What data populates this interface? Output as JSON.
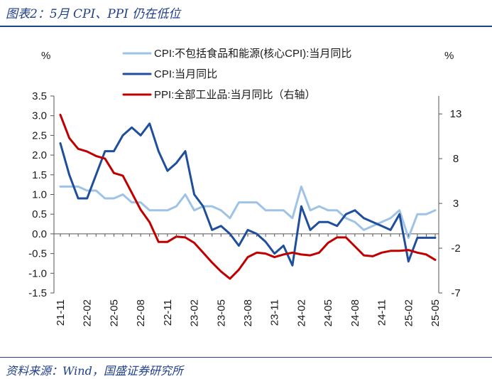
{
  "title": "图表2：5月 CPI、PPI 仍在低位",
  "source": "资料来源：Wind，国盛证券研究所",
  "chart_data": {
    "type": "line",
    "y_left": {
      "unit": "%",
      "ticks": [
        "3.5",
        "3.0",
        "2.5",
        "2.0",
        "1.5",
        "1.0",
        "0.5",
        "0.0",
        "-0.5",
        "-1.0",
        "-1.5"
      ],
      "min": -1.5,
      "max": 3.5
    },
    "y_right": {
      "unit": "%",
      "ticks": [
        "13",
        "8",
        "3",
        "-2",
        "-7"
      ],
      "min": -7,
      "max": 15
    },
    "x_tick_labels": [
      "21-11",
      "22-02",
      "22-05",
      "22-08",
      "22-11",
      "23-02",
      "23-05",
      "23-08",
      "23-11",
      "24-02",
      "24-05",
      "24-08",
      "24-11",
      "25-02",
      "25-05"
    ],
    "x": [
      "21-11",
      "21-12",
      "22-01",
      "22-02",
      "22-03",
      "22-04",
      "22-05",
      "22-06",
      "22-07",
      "22-08",
      "22-09",
      "22-10",
      "22-11",
      "22-12",
      "23-01",
      "23-02",
      "23-03",
      "23-04",
      "23-05",
      "23-06",
      "23-07",
      "23-08",
      "23-09",
      "23-10",
      "23-11",
      "23-12",
      "24-01",
      "24-02",
      "24-03",
      "24-04",
      "24-05",
      "24-06",
      "24-07",
      "24-08",
      "24-09",
      "24-10",
      "24-11",
      "24-12",
      "25-01",
      "25-02",
      "25-03",
      "25-04",
      "25-05"
    ],
    "series": [
      {
        "name": "CPI:不包括食品和能源(核心CPI):当月同比",
        "axis": "left",
        "color": "#9ec3e6",
        "values": [
          1.2,
          1.2,
          1.2,
          1.1,
          1.1,
          0.9,
          0.9,
          1.0,
          0.8,
          0.8,
          0.6,
          0.6,
          0.6,
          0.7,
          1.0,
          0.6,
          0.7,
          0.7,
          0.6,
          0.4,
          0.8,
          0.8,
          0.8,
          0.6,
          0.6,
          0.6,
          0.4,
          1.2,
          0.6,
          0.7,
          0.6,
          0.6,
          0.4,
          0.3,
          0.1,
          0.2,
          0.3,
          0.4,
          0.6,
          -0.1,
          0.5,
          0.5,
          0.6
        ]
      },
      {
        "name": "CPI:当月同比",
        "axis": "left",
        "color": "#1f4e9c",
        "values": [
          2.3,
          1.5,
          0.9,
          0.9,
          1.5,
          2.1,
          2.1,
          2.5,
          2.7,
          2.5,
          2.8,
          2.1,
          1.6,
          1.8,
          2.1,
          1.0,
          0.7,
          0.1,
          0.2,
          0.0,
          -0.3,
          0.1,
          0.0,
          -0.2,
          -0.5,
          -0.3,
          -0.8,
          0.7,
          0.1,
          0.3,
          0.3,
          0.2,
          0.5,
          0.6,
          0.4,
          0.3,
          0.2,
          0.1,
          0.5,
          -0.7,
          -0.1,
          -0.1,
          -0.1
        ]
      },
      {
        "name": "PPI:全部工业品:当月同比（右轴）",
        "axis": "right",
        "color": "#c00000",
        "values": [
          12.9,
          10.3,
          9.1,
          8.8,
          8.3,
          8.0,
          6.4,
          6.1,
          4.2,
          2.3,
          0.9,
          -1.3,
          -1.3,
          -0.7,
          -0.8,
          -1.4,
          -2.5,
          -3.6,
          -4.6,
          -5.4,
          -4.4,
          -3.0,
          -2.5,
          -2.6,
          -3.0,
          -2.7,
          -2.5,
          -2.7,
          -2.8,
          -2.5,
          -1.4,
          -0.8,
          -0.8,
          -1.8,
          -2.8,
          -2.9,
          -2.5,
          -2.3,
          -2.3,
          -2.2,
          -2.5,
          -2.7,
          -3.3
        ]
      }
    ]
  }
}
